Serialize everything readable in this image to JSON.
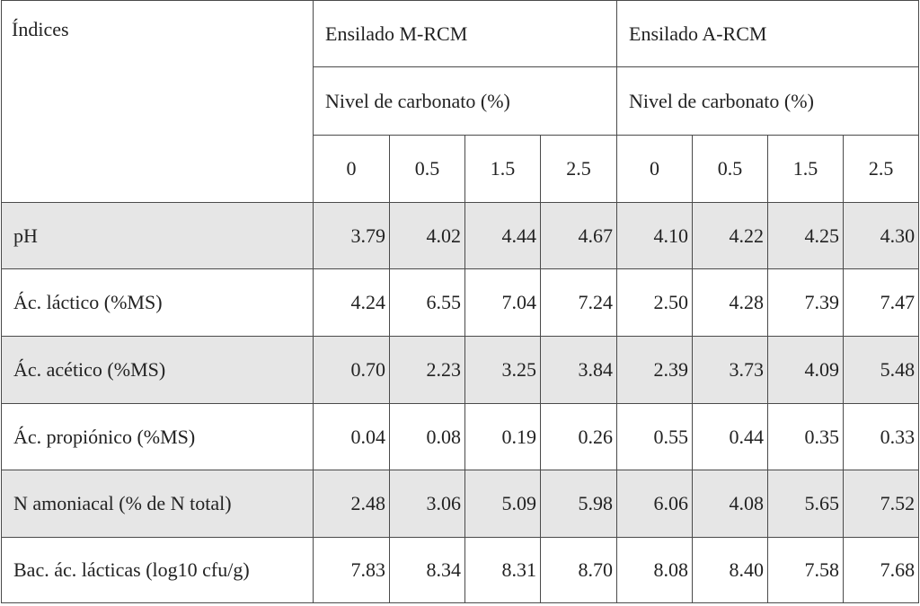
{
  "table": {
    "index_header": "Índices",
    "groups": [
      {
        "title": "Ensilado M-RCM",
        "subtitle": "Nivel de carbonato (%)",
        "levels": [
          "0",
          "0.5",
          "1.5",
          "2.5"
        ]
      },
      {
        "title": "Ensilado A-RCM",
        "subtitle": "Nivel de carbonato (%)",
        "levels": [
          "0",
          "0.5",
          "1.5",
          "2.5"
        ]
      }
    ],
    "rows": [
      {
        "label": "pH",
        "values": [
          "3.79",
          "4.02",
          "4.44",
          "4.67",
          "4.10",
          "4.22",
          "4.25",
          "4.30"
        ]
      },
      {
        "label": "Ác. láctico (%MS)",
        "values": [
          "4.24",
          "6.55",
          "7.04",
          "7.24",
          "2.50",
          "4.28",
          "7.39",
          "7.47"
        ]
      },
      {
        "label": "Ác. acético (%MS)",
        "values": [
          "0.70",
          "2.23",
          "3.25",
          "3.84",
          "2.39",
          "3.73",
          "4.09",
          "5.48"
        ]
      },
      {
        "label": "Ác. propiónico (%MS)",
        "values": [
          "0.04",
          "0.08",
          "0.19",
          "0.26",
          "0.55",
          "0.44",
          "0.35",
          "0.33"
        ]
      },
      {
        "label": "N amoniacal (% de N total)",
        "values": [
          "2.48",
          "3.06",
          "5.09",
          "5.98",
          "6.06",
          "4.08",
          "5.65",
          "7.52"
        ]
      },
      {
        "label": "Bac. ác. lácticas (log10 cfu/g)",
        "values": [
          "7.83",
          "8.34",
          "8.31",
          "8.70",
          "8.08",
          "8.40",
          "7.58",
          "7.68"
        ]
      }
    ]
  }
}
